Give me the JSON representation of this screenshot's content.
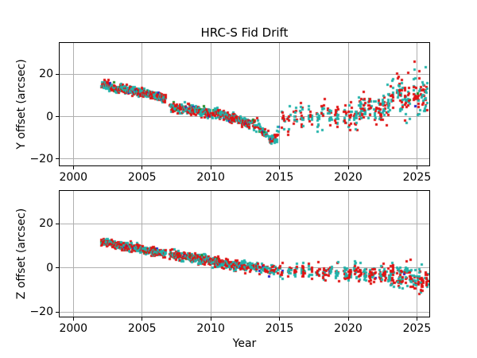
{
  "chart_data": {
    "type": "scatter",
    "title": "HRC-S Fid Drift",
    "xlabel": "Year",
    "grid": true,
    "grid_color": "#b0b0b0",
    "axis_color": "#000000",
    "marker": "square",
    "marker_size_px": 3,
    "seed": 11,
    "xlim": [
      1999.0,
      2025.9
    ],
    "xticks": [
      2000,
      2005,
      2010,
      2015,
      2020,
      2025
    ],
    "xtick_labels": [
      "2000",
      "2005",
      "2010",
      "2015",
      "2020",
      "2025"
    ],
    "series": [
      {
        "name": "fid-light-red",
        "color": "#e01212",
        "weight": 0.45
      },
      {
        "name": "fid-light-teal",
        "color": "#20b2aa",
        "weight": 0.45
      },
      {
        "name": "fid-light-green",
        "color": "#228b22",
        "weight": 0.05
      },
      {
        "name": "fid-light-blue",
        "color": "#2020cc",
        "weight": 0.05
      }
    ],
    "subplots": [
      {
        "ylabel": "Y offset (arcsec)",
        "ylim": [
          -23.0,
          34.6
        ],
        "yticks": [
          20,
          0,
          -20
        ],
        "ytick_labels": [
          "20",
          "0",
          "−20"
        ],
        "trend": [
          [
            2002.0,
            15.0
          ],
          [
            2002.3,
            15.7
          ],
          [
            2002.7,
            14.2
          ],
          [
            2003.1,
            13.1
          ],
          [
            2003.5,
            13.4
          ],
          [
            2004.0,
            12.4
          ],
          [
            2004.5,
            11.9
          ],
          [
            2005.0,
            11.5
          ],
          [
            2005.5,
            10.6
          ],
          [
            2006.0,
            10.2
          ],
          [
            2006.7,
            8.9
          ],
          [
            2007.0,
            4.7
          ],
          [
            2007.5,
            4.2
          ],
          [
            2008.0,
            3.7
          ],
          [
            2008.5,
            3.9
          ],
          [
            2009.0,
            2.8
          ],
          [
            2009.5,
            2.3
          ],
          [
            2010.0,
            1.5
          ],
          [
            2010.5,
            1.8
          ],
          [
            2011.0,
            0.6
          ],
          [
            2011.5,
            -0.2
          ],
          [
            2012.0,
            -1.2
          ],
          [
            2012.6,
            -2.4
          ],
          [
            2013.1,
            -3.6
          ],
          [
            2013.6,
            -5.8
          ],
          [
            2014.0,
            -8.6
          ],
          [
            2014.4,
            -10.8
          ],
          [
            2014.8,
            -8.5
          ],
          [
            2015.2,
            -1.8
          ],
          [
            2015.8,
            0.2
          ],
          [
            2016.4,
            0.8
          ],
          [
            2017.0,
            -0.2
          ],
          [
            2017.6,
            -1.0
          ],
          [
            2018.2,
            1.2
          ],
          [
            2018.8,
            0.6
          ],
          [
            2019.4,
            1.2
          ],
          [
            2019.9,
            -0.8
          ],
          [
            2020.4,
            2.6
          ],
          [
            2021.0,
            4.2
          ],
          [
            2021.5,
            6.0
          ],
          [
            2022.0,
            1.8
          ],
          [
            2022.6,
            5.2
          ],
          [
            2023.2,
            10.5
          ],
          [
            2023.6,
            12.5
          ],
          [
            2024.0,
            7.0
          ],
          [
            2024.4,
            9.5
          ],
          [
            2024.9,
            8.0
          ],
          [
            2025.4,
            10.0
          ],
          [
            2025.85,
            7.5
          ]
        ],
        "segments": [
          {
            "t0": 2002.0,
            "t1": 2006.7,
            "dt": 0.03,
            "jitter": 0.012,
            "xj": 0.012,
            "pts": [
              1,
              2
            ],
            "sd": 0.85,
            "csd": 0.3,
            "minor_p": 0.1
          },
          {
            "t0": 2007.0,
            "t1": 2012.9,
            "dt": 0.035,
            "jitter": 0.014,
            "xj": 0.012,
            "pts": [
              1,
              2
            ],
            "sd": 0.95,
            "csd": 0.4,
            "minor_p": 0.1
          },
          {
            "t0": 2013.0,
            "t1": 2014.95,
            "dt": 0.07,
            "jitter": 0.025,
            "xj": 0.02,
            "pts": [
              1,
              2
            ],
            "sd": 1.3,
            "csd": 0.8,
            "minor_p": 0.1
          },
          {
            "t0": 2015.2,
            "t1": 2019.6,
            "dt": 0.5,
            "jitter": 0.1,
            "xj": 0.13,
            "pts": [
              5,
              10
            ],
            "sd": 2.6,
            "csd": 1.0,
            "minor_p": 0.15
          },
          {
            "t0": 2019.8,
            "t1": 2022.7,
            "dt": 0.35,
            "jitter": 0.08,
            "xj": 0.11,
            "pts": [
              6,
              12
            ],
            "sd": 3.2,
            "csd": 1.4,
            "minor_p": 0.15
          },
          {
            "t0": 2022.95,
            "t1": 2025.85,
            "dt": 0.3,
            "jitter": 0.07,
            "xj": 0.11,
            "pts": [
              6,
              12
            ],
            "sd": 4.4,
            "csd": 1.8,
            "minor_p": 0.15,
            "tail": {
              "p": 0.03,
              "dy": [
                8,
                19
              ]
            }
          }
        ]
      },
      {
        "ylabel": "Z offset (arcsec)",
        "ylim": [
          -22.0,
          34.9
        ],
        "yticks": [
          20,
          0,
          -20
        ],
        "ytick_labels": [
          "20",
          "0",
          "−20"
        ],
        "trend": [
          [
            2002.0,
            12.3
          ],
          [
            2003.0,
            11.0
          ],
          [
            2004.0,
            9.7
          ],
          [
            2005.0,
            8.5
          ],
          [
            2006.0,
            7.4
          ],
          [
            2006.7,
            6.8
          ],
          [
            2007.0,
            6.3
          ],
          [
            2008.0,
            5.3
          ],
          [
            2009.0,
            4.4
          ],
          [
            2010.0,
            3.3
          ],
          [
            2011.0,
            2.3
          ],
          [
            2012.0,
            1.5
          ],
          [
            2013.0,
            0.7
          ],
          [
            2014.0,
            -0.3
          ],
          [
            2015.0,
            -0.9
          ],
          [
            2016.0,
            -1.1
          ],
          [
            2017.0,
            -1.3
          ],
          [
            2018.0,
            -1.5
          ],
          [
            2019.0,
            -1.7
          ],
          [
            2020.0,
            -1.9
          ],
          [
            2021.0,
            -2.1
          ],
          [
            2022.0,
            -2.5
          ],
          [
            2023.0,
            -3.1
          ],
          [
            2024.0,
            -3.9
          ],
          [
            2025.0,
            -4.6
          ],
          [
            2025.85,
            -5.0
          ]
        ],
        "segments": [
          {
            "t0": 2002.0,
            "t1": 2006.7,
            "dt": 0.03,
            "jitter": 0.012,
            "xj": 0.012,
            "pts": [
              1,
              2
            ],
            "sd": 0.8,
            "csd": 0.25,
            "minor_p": 0.1
          },
          {
            "t0": 2007.0,
            "t1": 2012.9,
            "dt": 0.035,
            "jitter": 0.014,
            "xj": 0.012,
            "pts": [
              1,
              2
            ],
            "sd": 0.9,
            "csd": 0.3,
            "minor_p": 0.1
          },
          {
            "t0": 2013.0,
            "t1": 2014.95,
            "dt": 0.07,
            "jitter": 0.025,
            "xj": 0.02,
            "pts": [
              1,
              2
            ],
            "sd": 1.1,
            "csd": 0.4,
            "minor_p": 0.1
          },
          {
            "t0": 2015.2,
            "t1": 2019.6,
            "dt": 0.5,
            "jitter": 0.1,
            "xj": 0.13,
            "pts": [
              5,
              10
            ],
            "sd": 1.7,
            "csd": 0.5,
            "minor_p": 0.15
          },
          {
            "t0": 2019.8,
            "t1": 2022.7,
            "dt": 0.35,
            "jitter": 0.08,
            "xj": 0.11,
            "pts": [
              6,
              12
            ],
            "sd": 1.9,
            "csd": 0.6,
            "minor_p": 0.15
          },
          {
            "t0": 2022.95,
            "t1": 2025.85,
            "dt": 0.3,
            "jitter": 0.07,
            "xj": 0.11,
            "pts": [
              6,
              12
            ],
            "sd": 2.3,
            "csd": 0.9,
            "minor_p": 0.15,
            "tail": {
              "p": 0.04,
              "dy": [
                -6,
                -2
              ]
            }
          }
        ]
      }
    ]
  }
}
